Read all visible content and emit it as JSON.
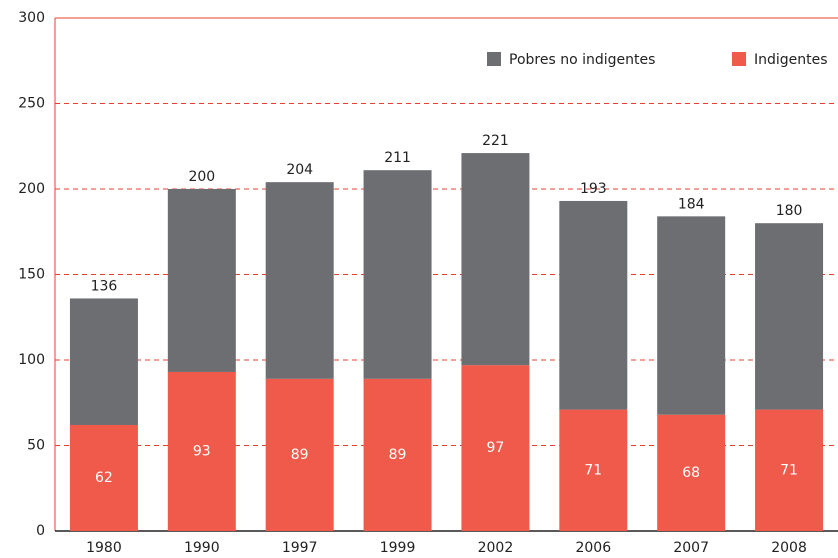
{
  "chart_data": {
    "type": "stacked_bar",
    "categories": [
      "1980",
      "1990",
      "1997",
      "1999",
      "2002",
      "2006",
      "2007",
      "2008"
    ],
    "series": [
      {
        "name": "Indigentes",
        "color": "#ef5a4b",
        "values": [
          62,
          93,
          89,
          89,
          97,
          71,
          68,
          71
        ]
      },
      {
        "name": "Pobres no indigentes",
        "color": "#6d6e71",
        "values": [
          74,
          107,
          115,
          122,
          124,
          122,
          116,
          109
        ]
      }
    ],
    "totals": [
      136,
      200,
      204,
      211,
      221,
      193,
      184,
      180
    ],
    "ylim": [
      0,
      300
    ],
    "yticks": [
      0,
      50,
      100,
      150,
      200,
      250,
      300
    ],
    "grid": true
  }
}
